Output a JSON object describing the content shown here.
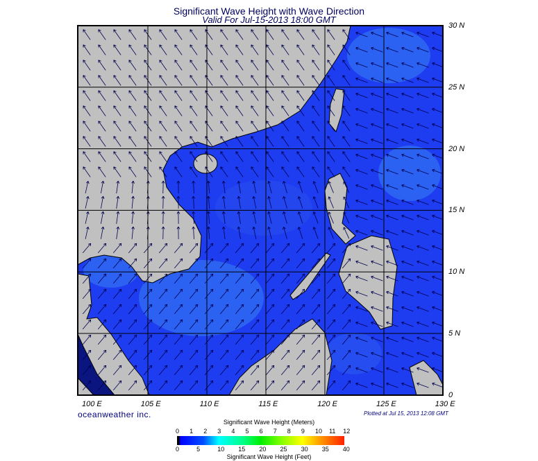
{
  "title": "Significant Wave Height with Wave Direction",
  "subtitle": "Valid For Jul-15-2013 18:00 GMT",
  "map": {
    "region": "South China Sea",
    "ocean_color": "#1e3cf0",
    "land_color": "#c0c0c0",
    "lon_labels": [
      "100 E",
      "105 E",
      "110 E",
      "115 E",
      "120 E",
      "125 E",
      "130 E"
    ],
    "lat_labels": [
      "30 N",
      "25 N",
      "20 N",
      "15 N",
      "10 N",
      "5 N",
      "0"
    ]
  },
  "branding": "oceanweather inc.",
  "plotted": "Plotted at Jul 15, 2013 12:08 GMT",
  "colorbar": {
    "title_top": "Significant Wave Height (Meters)",
    "title_bottom": "Significant Wave Height (Feet)",
    "meters": [
      "0",
      "1",
      "2",
      "3",
      "4",
      "5",
      "6",
      "7",
      "8",
      "9",
      "10",
      "11",
      "12"
    ],
    "feet": [
      "0",
      "5",
      "10",
      "15",
      "20",
      "25",
      "30",
      "35",
      "40"
    ]
  }
}
